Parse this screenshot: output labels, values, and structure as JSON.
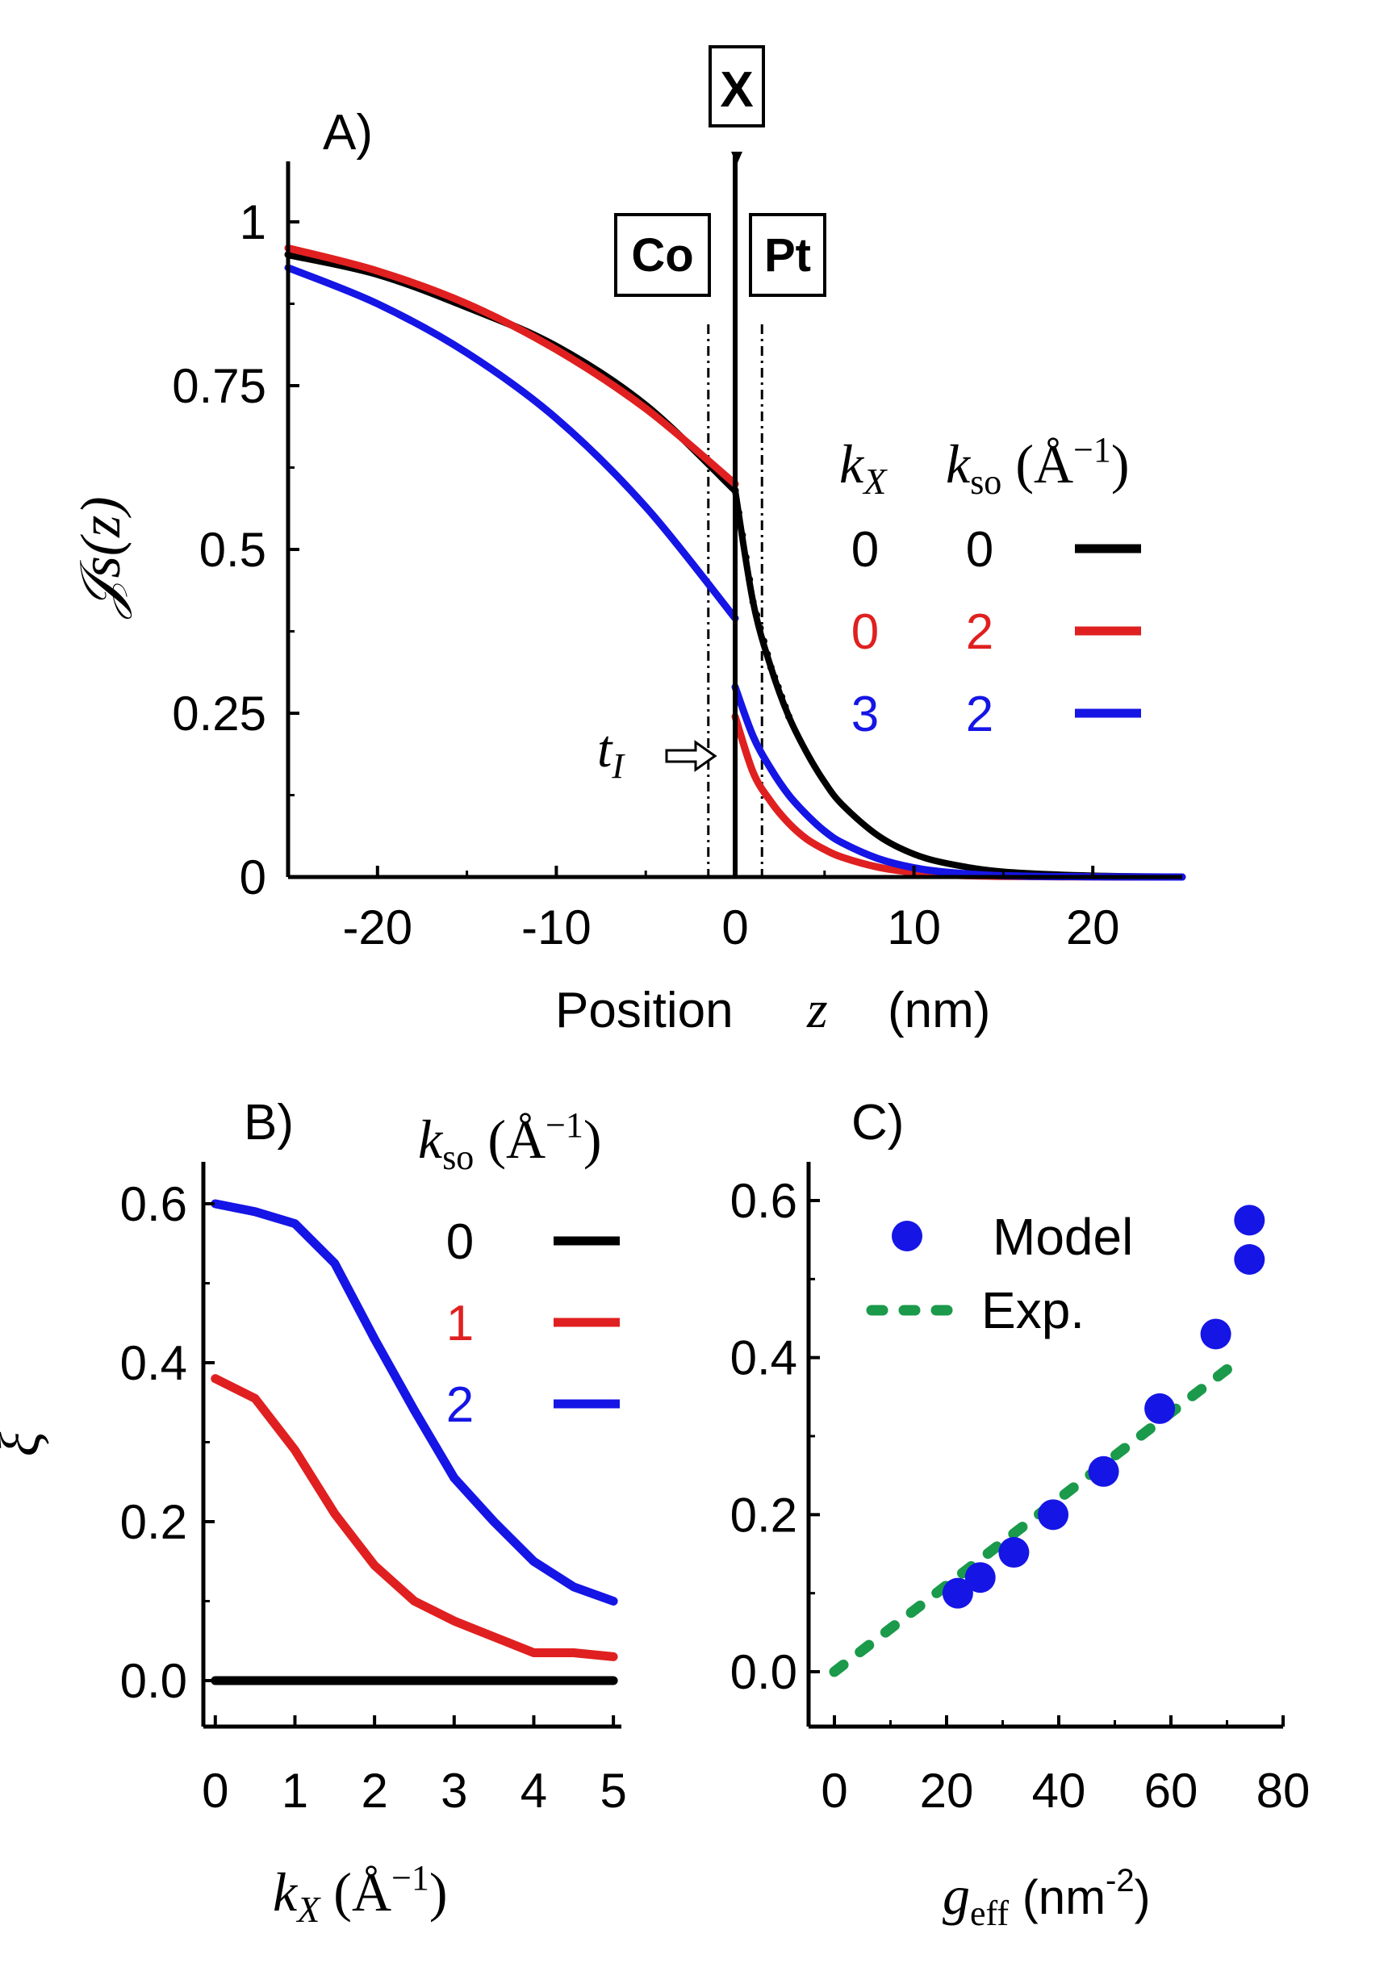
{
  "chart_data": [
    {
      "panel_label": "A)",
      "type": "line",
      "xlabel": {
        "prefix": "Position",
        "symbol": "z",
        "unit": "(nm)"
      },
      "ylabel": "𝒥s(z)",
      "xlim": [
        -25,
        25
      ],
      "ylim": [
        0,
        1.1
      ],
      "xticks": [
        -20,
        -10,
        0,
        10,
        20
      ],
      "yticks": [
        0,
        0.25,
        0.5,
        0.75,
        1
      ],
      "ytick_labels": [
        "0",
        "0.25",
        "0.5",
        "0.75",
        "1"
      ],
      "region_labels": [
        "Co",
        "Pt",
        "X"
      ],
      "annotation": "tI",
      "interface_lines": [
        -1.5,
        1.5
      ],
      "legend": {
        "header": [
          "kX",
          "kso (Å⁻¹)"
        ],
        "rows": [
          {
            "kX": "0",
            "kso": "0",
            "color": "#000000"
          },
          {
            "kX": "0",
            "kso": "2",
            "color": "#e02020"
          },
          {
            "kX": "3",
            "kso": "2",
            "color": "#1515e6"
          }
        ]
      },
      "series": [
        {
          "color": "#000000",
          "left": {
            "x": [
              -25,
              -20,
              -15,
              -10,
              -5,
              0
            ],
            "y": [
              0.95,
              0.92,
              0.87,
              0.81,
              0.72,
              0.59
            ]
          },
          "right": {
            "x": [
              0,
              1,
              2,
              3,
              4,
              5,
              6,
              8,
              10,
              12,
              15,
              20,
              25
            ],
            "y": [
              0.59,
              0.42,
              0.32,
              0.245,
              0.19,
              0.145,
              0.11,
              0.063,
              0.035,
              0.02,
              0.008,
              0.002,
              0.0005
            ]
          }
        },
        {
          "color": "#e02020",
          "left": {
            "x": [
              -25,
              -20,
              -15,
              -10,
              -5,
              0
            ],
            "y": [
              0.96,
              0.925,
              0.875,
              0.805,
              0.715,
              0.6
            ]
          },
          "right": {
            "x": [
              0,
              1,
              2,
              3,
              4,
              5,
              6,
              8,
              10,
              12,
              15,
              20,
              25
            ],
            "y": [
              0.245,
              0.16,
              0.115,
              0.082,
              0.058,
              0.042,
              0.03,
              0.015,
              0.007,
              0.003,
              0.001,
              0.0002,
              0
            ]
          }
        },
        {
          "color": "#1515e6",
          "left": {
            "x": [
              -25,
              -20,
              -15,
              -10,
              -5,
              0
            ],
            "y": [
              0.93,
              0.875,
              0.8,
              0.7,
              0.565,
              0.395
            ]
          },
          "right": {
            "x": [
              0,
              1,
              2,
              3,
              4,
              5,
              6,
              8,
              10,
              12,
              15,
              20,
              25
            ],
            "y": [
              0.29,
              0.215,
              0.165,
              0.125,
              0.095,
              0.07,
              0.052,
              0.028,
              0.014,
              0.007,
              0.002,
              0.0004,
              0
            ]
          }
        }
      ]
    },
    {
      "panel_label": "B)",
      "type": "line",
      "xlabel": "kX (Å⁻¹)",
      "ylabel": "ξ",
      "xlim": [
        -0.15,
        5.1
      ],
      "ylim": [
        -0.06,
        0.65
      ],
      "xticks": [
        0,
        1,
        2,
        3,
        4,
        5
      ],
      "yticks": [
        0,
        0.2,
        0.4,
        0.6
      ],
      "ytick_labels": [
        "0.0",
        "0.2",
        "0.4",
        "0.6"
      ],
      "legend": {
        "header": "kso (Å⁻¹)",
        "rows": [
          {
            "label": "0",
            "color": "#000000"
          },
          {
            "label": "1",
            "color": "#e02020"
          },
          {
            "label": "2",
            "color": "#1515e6"
          }
        ]
      },
      "x": [
        0,
        0.5,
        1,
        1.5,
        2,
        2.5,
        3,
        3.5,
        4,
        4.5,
        5
      ],
      "series": [
        {
          "color": "#000000",
          "values": [
            0,
            0,
            0,
            0,
            0,
            0,
            0,
            0,
            0,
            0,
            0
          ]
        },
        {
          "color": "#e02020",
          "values": [
            0.38,
            0.355,
            0.29,
            0.21,
            0.145,
            0.1,
            0.075,
            0.055,
            0.035,
            0.035,
            0.03
          ]
        },
        {
          "color": "#1515e6",
          "values": [
            0.6,
            0.59,
            0.575,
            0.525,
            0.43,
            0.34,
            0.255,
            0.2,
            0.15,
            0.118,
            0.1
          ]
        }
      ]
    },
    {
      "panel_label": "C)",
      "type": "scatter",
      "xlabel": "geff (nm⁻²)",
      "ylabel": "",
      "xlim": [
        -4,
        80
      ],
      "ylim": [
        -0.06,
        0.65
      ],
      "xticks": [
        0,
        20,
        40,
        60,
        80
      ],
      "yticks": [
        0,
        0.2,
        0.4,
        0.6
      ],
      "ytick_labels": [
        "0.0",
        "0.2",
        "0.4",
        "0.6"
      ],
      "legend": [
        {
          "label": "Model",
          "marker": "circle",
          "color": "#1515e6"
        },
        {
          "label": "Exp.",
          "marker": "dotted-line",
          "color": "#1a9a4a"
        }
      ],
      "model": {
        "x": [
          22,
          26,
          32,
          39,
          48,
          58,
          68,
          74,
          74
        ],
        "y": [
          0.1,
          0.12,
          0.152,
          0.2,
          0.255,
          0.335,
          0.43,
          0.525,
          0.575
        ]
      },
      "exp": {
        "x": [
          0,
          70
        ],
        "y": [
          0,
          0.385
        ]
      }
    }
  ]
}
